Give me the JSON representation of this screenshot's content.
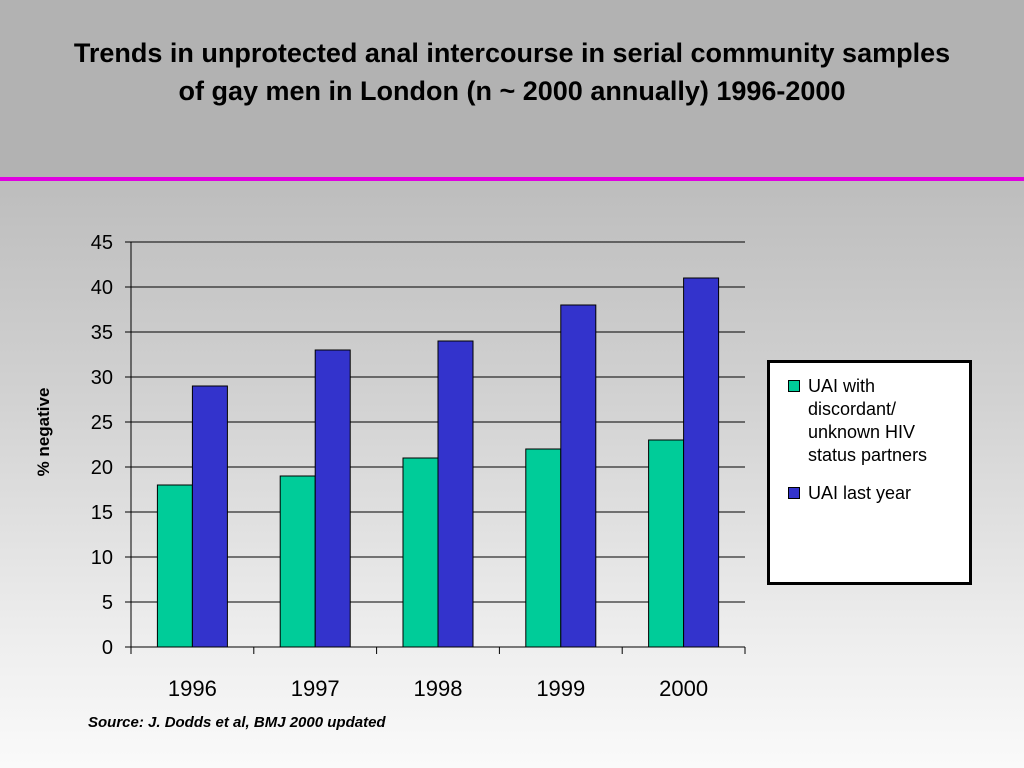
{
  "slide": {
    "title": "Trends in unprotected anal intercourse in serial community samples of gay men in London (n ~ 2000 annually) 1996-2000",
    "source": "Source:  J. Dodds et al, BMJ 2000 updated",
    "accent_color": "#e000e0"
  },
  "chart_data": {
    "type": "bar",
    "title": "",
    "xlabel": "",
    "ylabel": "% negative",
    "categories": [
      "1996",
      "1997",
      "1998",
      "1999",
      "2000"
    ],
    "series": [
      {
        "name": "UAI with discordant/ unknown HIV status partners",
        "values": [
          18,
          19,
          21,
          22,
          23
        ],
        "color": "#00cc99"
      },
      {
        "name": "UAI last year",
        "values": [
          29,
          33,
          34,
          38,
          41
        ],
        "color": "#3333cc"
      }
    ],
    "ylim": [
      0,
      45
    ],
    "yticks": [
      0,
      5,
      10,
      15,
      20,
      25,
      30,
      35,
      40,
      45
    ],
    "grid": true,
    "legend_position": "right"
  }
}
